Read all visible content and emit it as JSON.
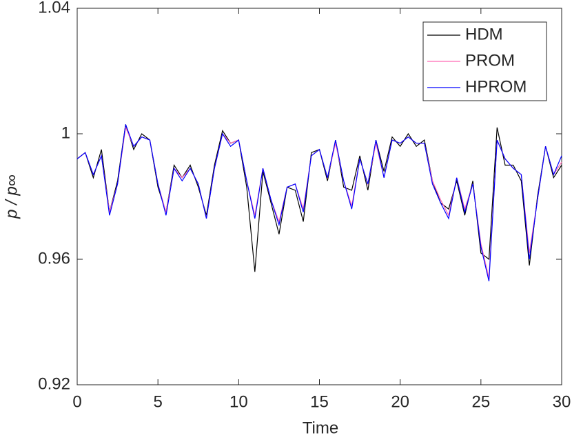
{
  "chart_data": {
    "type": "line",
    "xlabel": "Time",
    "ylabel": "p / p∞",
    "x": [
      0,
      0.5,
      1,
      1.5,
      2,
      2.5,
      3,
      3.5,
      4,
      4.5,
      5,
      5.5,
      6,
      6.5,
      7,
      7.5,
      8,
      8.5,
      9,
      9.5,
      10,
      10.5,
      11,
      11.5,
      12,
      12.5,
      13,
      13.5,
      14,
      14.5,
      15,
      15.5,
      16,
      16.5,
      17,
      17.5,
      18,
      18.5,
      19,
      19.5,
      20,
      20.5,
      21,
      21.5,
      22,
      22.5,
      23,
      23.5,
      24,
      24.5,
      25,
      25.5,
      26,
      26.5,
      27,
      27.5,
      28,
      28.5,
      29,
      29.5,
      30
    ],
    "series": [
      {
        "name": "HDM",
        "color": "#000000",
        "values": [
          0.992,
          0.994,
          0.986,
          0.995,
          0.975,
          0.985,
          1.003,
          0.995,
          1.0,
          0.998,
          0.983,
          0.975,
          0.99,
          0.986,
          0.99,
          0.983,
          0.974,
          0.99,
          1.001,
          0.997,
          0.998,
          0.983,
          0.956,
          0.988,
          0.978,
          0.968,
          0.983,
          0.982,
          0.972,
          0.994,
          0.995,
          0.985,
          0.998,
          0.983,
          0.982,
          0.993,
          0.982,
          0.998,
          0.988,
          0.999,
          0.996,
          1.0,
          0.996,
          0.998,
          0.985,
          0.978,
          0.976,
          0.985,
          0.974,
          0.985,
          0.962,
          0.96,
          1.002,
          0.99,
          0.99,
          0.985,
          0.958,
          0.98,
          0.996,
          0.986,
          0.99
        ]
      },
      {
        "name": "PROM",
        "color": "#ff69b4",
        "values": [
          0.992,
          0.994,
          0.987,
          0.993,
          0.975,
          0.984,
          1.002,
          0.996,
          0.999,
          0.998,
          0.984,
          0.975,
          0.989,
          0.986,
          0.989,
          0.984,
          0.973,
          0.989,
          1.0,
          0.997,
          0.998,
          0.985,
          0.974,
          0.989,
          0.979,
          0.972,
          0.983,
          0.984,
          0.976,
          0.993,
          0.995,
          0.986,
          0.997,
          0.985,
          0.977,
          0.992,
          0.984,
          0.997,
          0.986,
          0.998,
          0.997,
          0.999,
          0.997,
          0.997,
          0.985,
          0.979,
          0.974,
          0.986,
          0.976,
          0.984,
          0.965,
          0.954,
          0.998,
          0.992,
          0.989,
          0.987,
          0.962,
          0.979,
          0.996,
          0.987,
          0.991
        ]
      },
      {
        "name": "HPROM",
        "color": "#0000ff",
        "values": [
          0.992,
          0.994,
          0.987,
          0.993,
          0.974,
          0.984,
          1.003,
          0.996,
          0.999,
          0.998,
          0.984,
          0.974,
          0.989,
          0.985,
          0.989,
          0.984,
          0.973,
          0.989,
          1.0,
          0.996,
          0.998,
          0.985,
          0.973,
          0.989,
          0.979,
          0.971,
          0.983,
          0.984,
          0.975,
          0.993,
          0.995,
          0.986,
          0.998,
          0.985,
          0.976,
          0.992,
          0.984,
          0.998,
          0.986,
          0.998,
          0.997,
          0.999,
          0.997,
          0.997,
          0.984,
          0.978,
          0.973,
          0.986,
          0.975,
          0.984,
          0.964,
          0.953,
          0.998,
          0.992,
          0.989,
          0.987,
          0.96,
          0.979,
          0.996,
          0.987,
          0.993
        ]
      }
    ],
    "xlim": [
      0,
      30
    ],
    "ylim": [
      0.92,
      1.04
    ],
    "xticks": [
      0,
      5,
      10,
      15,
      20,
      25,
      30
    ],
    "yticks": [
      0.92,
      0.96,
      1,
      1.04
    ],
    "legend": "upper-right"
  }
}
